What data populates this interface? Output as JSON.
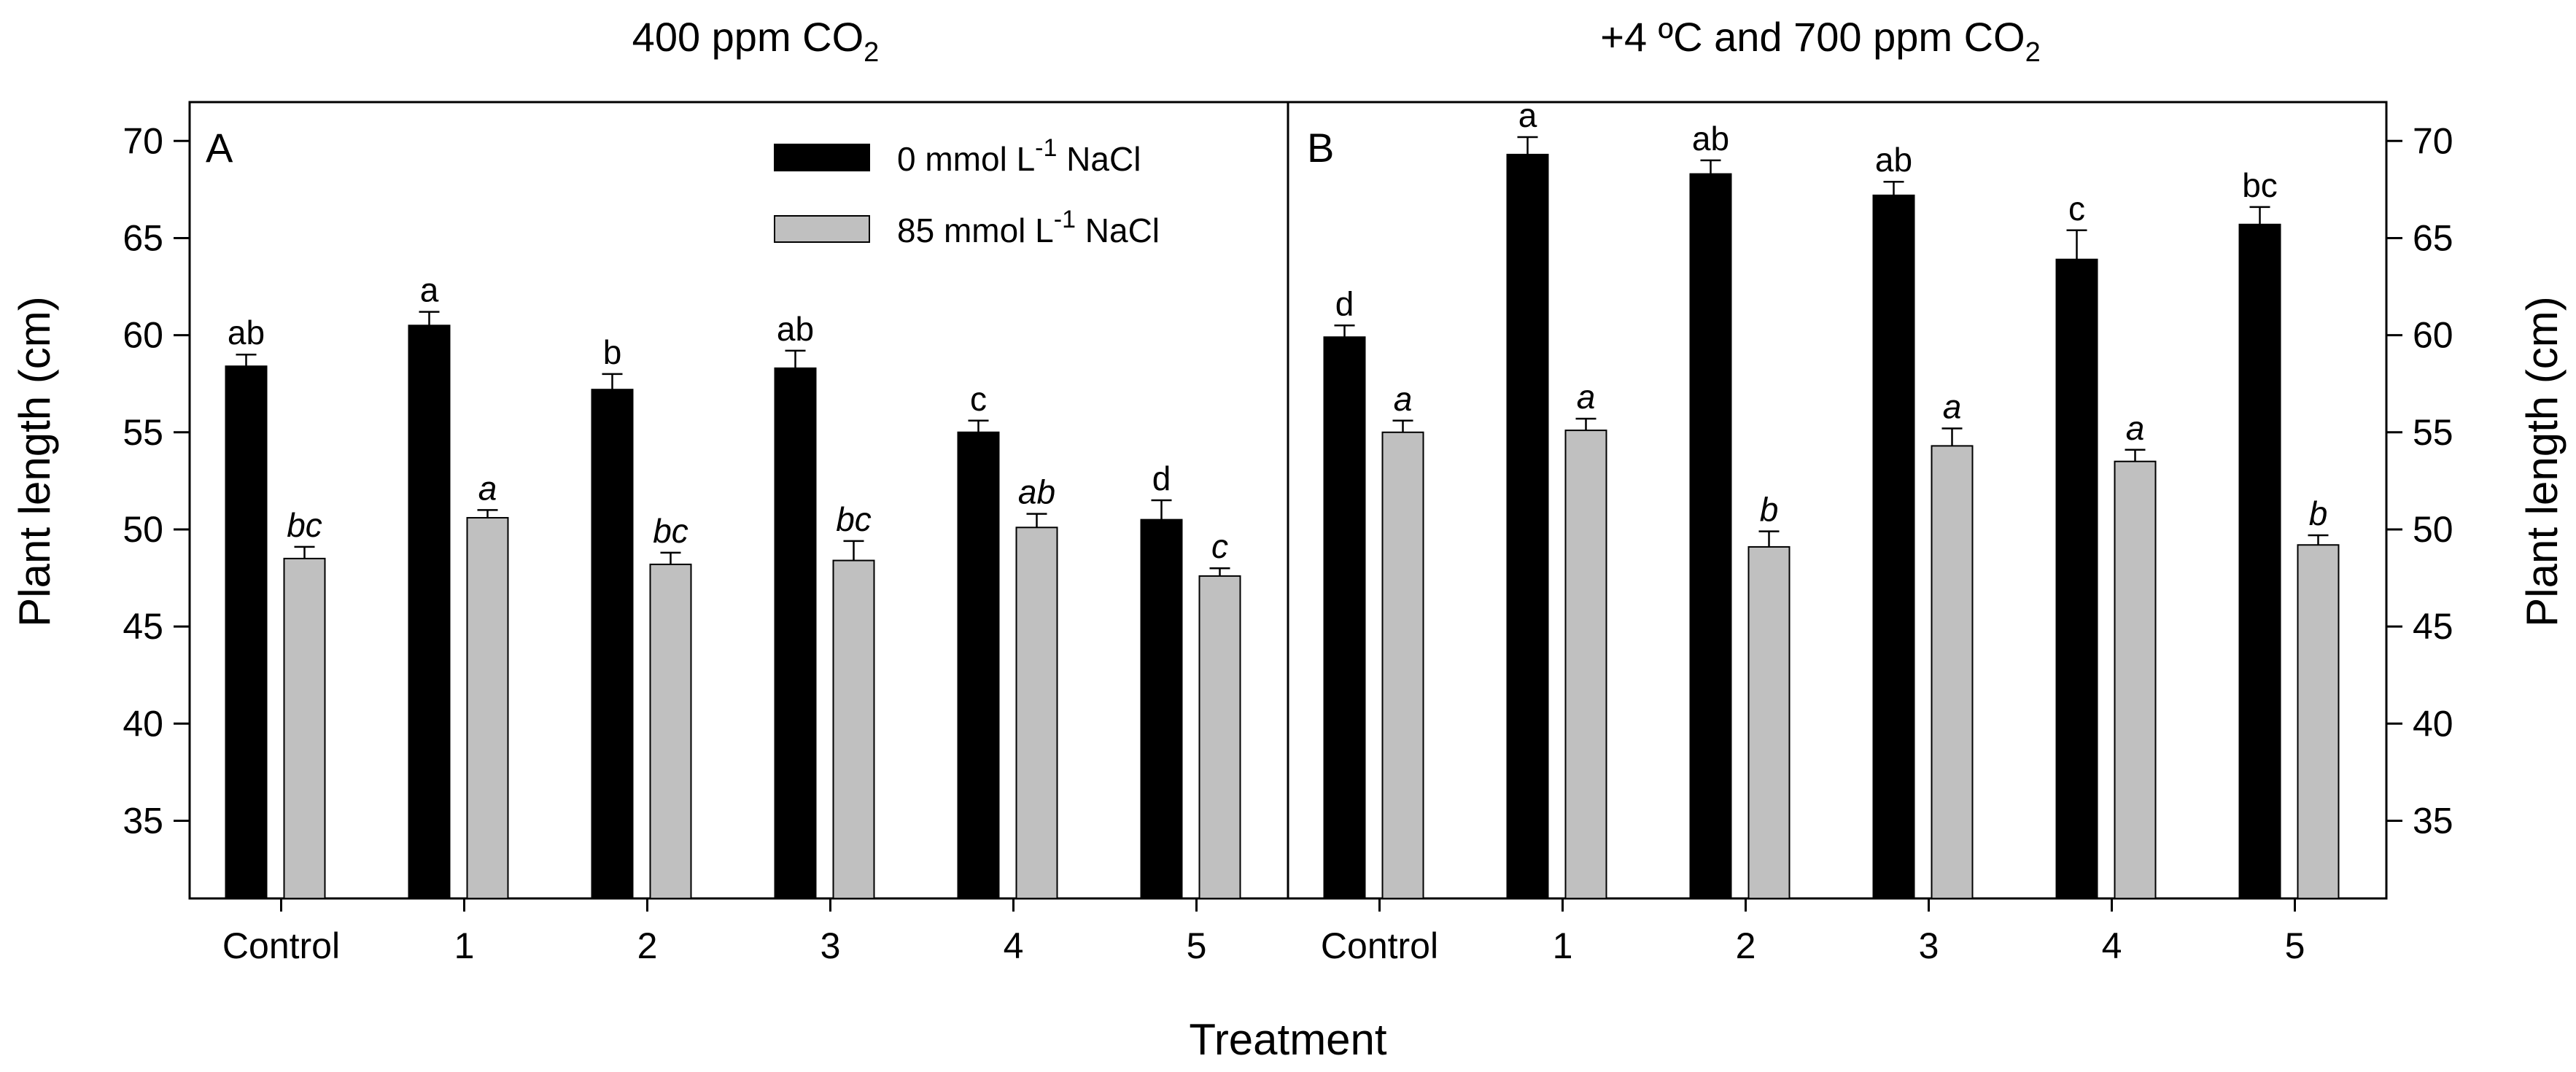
{
  "figure": {
    "xlabel": "Treatment",
    "ylabel": "Plant length (cm)",
    "legend": {
      "entries": [
        {
          "pre": "0 mmol L",
          "sup": "-1",
          "post": " NaCl",
          "color": "#000000"
        },
        {
          "pre": "85 mmol L",
          "sup": "-1",
          "post": " NaCl",
          "color": "#c0c0c0"
        }
      ],
      "placement": "top-right of panel A"
    },
    "colors": {
      "series0": "#000000",
      "series1": "#c0c0c0"
    }
  },
  "chart_data": [
    {
      "type": "bar",
      "panel": "A",
      "title_main": "400 ppm CO",
      "title_sub": "2",
      "title_tail": "",
      "categories": [
        "Control",
        "1",
        "2",
        "3",
        "4",
        "5"
      ],
      "series": [
        {
          "name": "0 mmol L-1 NaCl",
          "values": [
            58.4,
            60.5,
            57.2,
            58.3,
            55.0,
            50.5
          ],
          "errors": [
            0.6,
            0.7,
            0.8,
            0.9,
            0.6,
            1.0
          ],
          "labels": [
            "ab",
            "a",
            "b",
            "ab",
            "c",
            "d"
          ],
          "italic": false
        },
        {
          "name": "85 mmol L-1 NaCl",
          "values": [
            48.5,
            50.6,
            48.2,
            48.4,
            50.1,
            47.6
          ],
          "errors": [
            0.6,
            0.4,
            0.6,
            1.0,
            0.7,
            0.4
          ],
          "labels": [
            "bc",
            "a",
            "bc",
            "bc",
            "ab",
            "c"
          ],
          "italic": true
        }
      ],
      "ylim": [
        31,
        72
      ],
      "yticks": [
        35,
        40,
        45,
        50,
        55,
        60,
        65,
        70
      ],
      "ytick_side": "left"
    },
    {
      "type": "bar",
      "panel": "B",
      "title_main": "+4 ºC and 700 ppm CO",
      "title_sub": "2",
      "title_tail": "",
      "categories": [
        "Control",
        "1",
        "2",
        "3",
        "4",
        "5"
      ],
      "series": [
        {
          "name": "0 mmol L-1 NaCl",
          "values": [
            59.9,
            69.3,
            68.3,
            67.2,
            63.9,
            65.7
          ],
          "errors": [
            0.6,
            0.9,
            0.7,
            0.7,
            1.5,
            0.9
          ],
          "labels": [
            "d",
            "a",
            "ab",
            "ab",
            "c",
            "bc"
          ],
          "italic": false
        },
        {
          "name": "85 mmol L-1 NaCl",
          "values": [
            55.0,
            55.1,
            49.1,
            54.3,
            53.5,
            49.2
          ],
          "errors": [
            0.6,
            0.6,
            0.8,
            0.9,
            0.6,
            0.5
          ],
          "labels": [
            "a",
            "a",
            "b",
            "a",
            "a",
            "b"
          ],
          "italic": true
        }
      ],
      "ylim": [
        31,
        72
      ],
      "yticks": [
        35,
        40,
        45,
        50,
        55,
        60,
        65,
        70
      ],
      "ytick_side": "right"
    }
  ]
}
